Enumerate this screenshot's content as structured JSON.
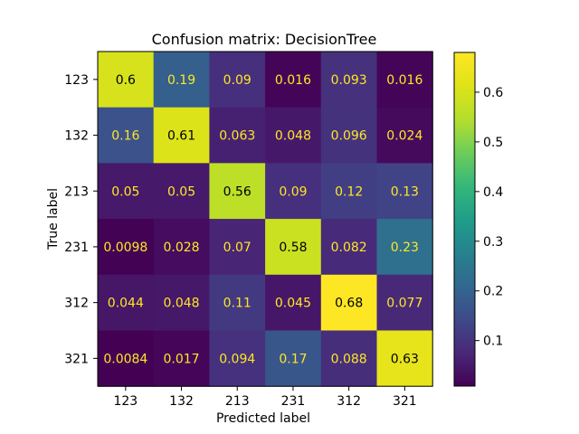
{
  "chart_data": {
    "type": "heatmap",
    "title": "Confusion matrix: DecisionTree",
    "xlabel": "Predicted label",
    "ylabel": "True label",
    "x_categories": [
      "123",
      "132",
      "213",
      "231",
      "312",
      "321"
    ],
    "y_categories": [
      "123",
      "132",
      "213",
      "231",
      "312",
      "321"
    ],
    "values": [
      [
        0.6,
        0.19,
        0.09,
        0.016,
        0.093,
        0.016
      ],
      [
        0.16,
        0.61,
        0.063,
        0.048,
        0.096,
        0.024
      ],
      [
        0.05,
        0.05,
        0.56,
        0.09,
        0.12,
        0.13
      ],
      [
        0.0098,
        0.028,
        0.07,
        0.58,
        0.082,
        0.23
      ],
      [
        0.044,
        0.048,
        0.11,
        0.045,
        0.68,
        0.077
      ],
      [
        0.0084,
        0.017,
        0.094,
        0.17,
        0.088,
        0.63
      ]
    ],
    "value_labels": [
      [
        "0.6",
        "0.19",
        "0.09",
        "0.016",
        "0.093",
        "0.016"
      ],
      [
        "0.16",
        "0.61",
        "0.063",
        "0.048",
        "0.096",
        "0.024"
      ],
      [
        "0.05",
        "0.05",
        "0.56",
        "0.09",
        "0.12",
        "0.13"
      ],
      [
        "0.0098",
        "0.028",
        "0.07",
        "0.58",
        "0.082",
        "0.23"
      ],
      [
        "0.044",
        "0.048",
        "0.11",
        "0.045",
        "0.68",
        "0.077"
      ],
      [
        "0.0084",
        "0.017",
        "0.094",
        "0.17",
        "0.088",
        "0.63"
      ]
    ],
    "colormap": "viridis",
    "color_range": [
      0.0084,
      0.68
    ],
    "colorbar_ticks": [
      0.1,
      0.2,
      0.3,
      0.4,
      0.5,
      0.6
    ],
    "colorbar_tick_labels": [
      "0.1",
      "0.2",
      "0.3",
      "0.4",
      "0.5",
      "0.6"
    ],
    "text_color_dark": "#000000",
    "text_color_light": "#fde725",
    "grid": false
  }
}
